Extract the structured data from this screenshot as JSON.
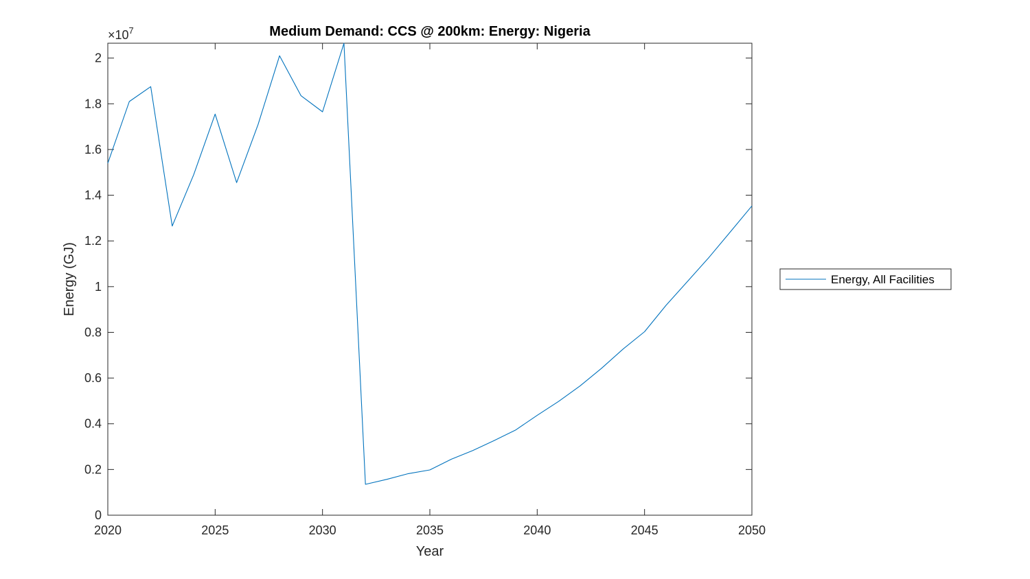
{
  "chart_data": {
    "type": "line",
    "title": "Medium Demand: CCS @ 200km: Energy: Nigeria",
    "xlabel": "Year",
    "ylabel": "Energy (GJ)",
    "y_exponent_label": "×10",
    "y_exponent": "7",
    "xlim": [
      2020,
      2050
    ],
    "ylim": [
      0,
      2.065
    ],
    "x_ticks": [
      "2020",
      "2025",
      "2030",
      "2035",
      "2040",
      "2045",
      "2050"
    ],
    "y_ticks": [
      "0",
      "0.2",
      "0.4",
      "0.6",
      "0.8",
      "1",
      "1.2",
      "1.4",
      "1.6",
      "1.8",
      "2"
    ],
    "grid": false,
    "legend_position": "outside-right",
    "series": [
      {
        "name": "Energy, All Facilities",
        "color": "#0072BD",
        "x": [
          2020,
          2021,
          2022,
          2023,
          2024,
          2025,
          2026,
          2027,
          2028,
          2029,
          2030,
          2031,
          2032,
          2033,
          2034,
          2035,
          2036,
          2037,
          2038,
          2039,
          2040,
          2041,
          2042,
          2043,
          2044,
          2045,
          2046,
          2047,
          2048,
          2049,
          2050
        ],
        "values": [
          1.54,
          1.81,
          1.875,
          1.265,
          1.49,
          1.755,
          1.455,
          1.71,
          2.01,
          1.835,
          1.765,
          2.07,
          0.135,
          0.157,
          0.182,
          0.198,
          0.245,
          0.283,
          0.327,
          0.373,
          0.437,
          0.498,
          0.566,
          0.643,
          0.727,
          0.803,
          0.918,
          1.023,
          1.128,
          1.24,
          1.353
        ]
      }
    ]
  }
}
